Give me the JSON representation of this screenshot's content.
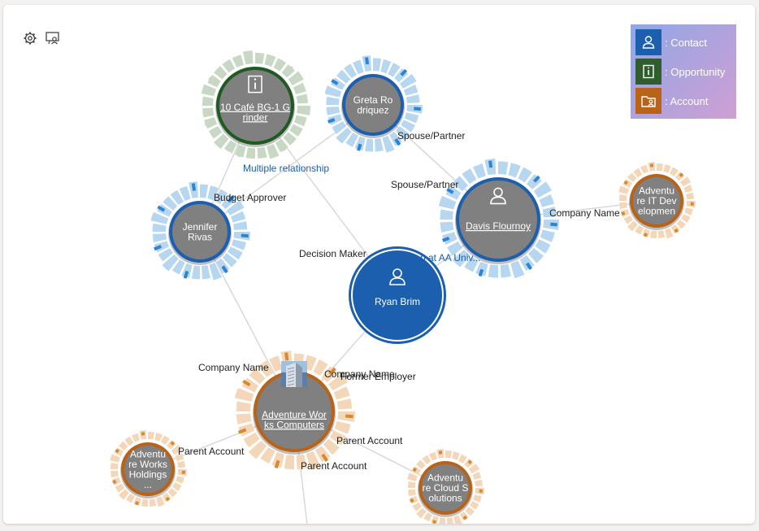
{
  "toolbar": {
    "settings_icon": "gear-icon",
    "layout_icon": "presentation-icon"
  },
  "legend": {
    "items": [
      {
        "label": ": Contact",
        "icon": "person-icon",
        "color": "#1b5fae"
      },
      {
        "label": ": Opportunity",
        "icon": "info-icon",
        "color": "#2f5d2e"
      },
      {
        "label": ": Account",
        "icon": "folder-person-icon",
        "color": "#b86317"
      }
    ]
  },
  "colors": {
    "contact": "#1b5fae",
    "contact_ring": "#b7d6f0",
    "contact_tick": "#2b85d0",
    "opportunity": "#1f5a22",
    "opportunity_ring": "#c9d7c5",
    "account": "#b86317",
    "account_ring": "#f3d7b8",
    "account_tick": "#d88a2e",
    "node_fill": "#808080",
    "edge": "#d6d6d6"
  },
  "nodes": [
    {
      "id": "cafe",
      "type": "opportunity",
      "lines": [
        "10 Café BG-1 G",
        "rinder"
      ],
      "underline": true,
      "icon": "info-icon"
    },
    {
      "id": "greta",
      "type": "contact",
      "lines": [
        "Greta Ro",
        "driquez"
      ],
      "underline": false
    },
    {
      "id": "jennifer",
      "type": "contact",
      "lines": [
        "Jennifer",
        "Rivas"
      ],
      "underline": false
    },
    {
      "id": "davis",
      "type": "contact",
      "lines": [
        "Davis Flournoy"
      ],
      "underline": true,
      "icon": "person-icon"
    },
    {
      "id": "ryan",
      "type": "contact-center",
      "lines": [
        "Ryan Brim"
      ],
      "underline": false,
      "icon": "person-icon"
    },
    {
      "id": "aitd",
      "type": "account",
      "lines": [
        "Adventu",
        "re IT Dev",
        "elopmen"
      ],
      "underline": false
    },
    {
      "id": "awc",
      "type": "account",
      "lines": [
        "Adventure Wor",
        "ks Computers"
      ],
      "underline": true,
      "icon": "building-photo"
    },
    {
      "id": "awh",
      "type": "account",
      "lines": [
        "Adventu",
        "re Works",
        "Holdings",
        "..."
      ],
      "underline": false
    },
    {
      "id": "acs",
      "type": "account",
      "lines": [
        "Adventu",
        "re Cloud S",
        "olutions"
      ],
      "underline": false
    }
  ],
  "edge_labels": [
    {
      "text": "Multiple relationship",
      "link": true
    },
    {
      "text": "Spouse/Partner",
      "link": false
    },
    {
      "text": "Spouse/Partner",
      "link": false
    },
    {
      "text": "Budget Approver",
      "link": false
    },
    {
      "text": "Company Name",
      "link": false
    },
    {
      "text": "Decision Maker",
      "link": false
    },
    {
      "text": "...p at AA Univ...",
      "link": true
    },
    {
      "text": "Company Name",
      "link": false
    },
    {
      "text": "Company Name",
      "link": false
    },
    {
      "text": "Former Employer",
      "link": false
    },
    {
      "text": "Parent Account",
      "link": false
    },
    {
      "text": "Parent Account",
      "link": false
    },
    {
      "text": "Parent Account",
      "link": false
    }
  ]
}
